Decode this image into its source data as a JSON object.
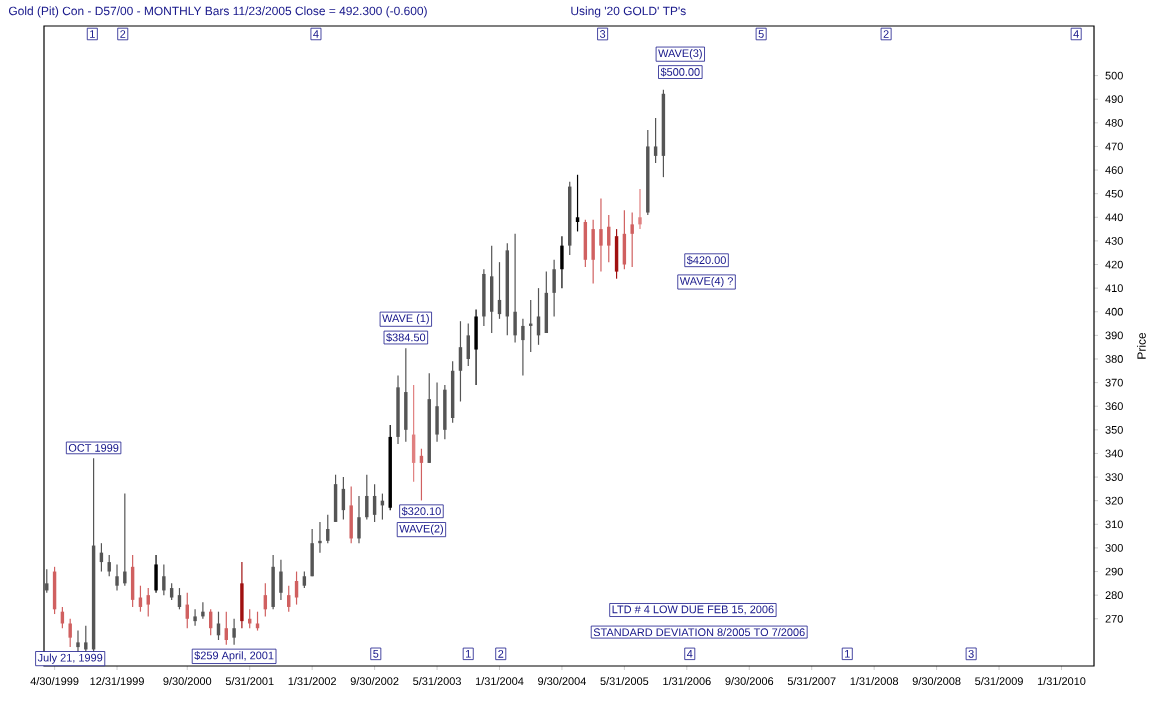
{
  "chart_data": {
    "type": "candlestick",
    "title": "Gold (Pit) Con - D57/00  - MONTHLY Bars  11/23/2005 Close = 492.300 (-0.600)",
    "subtitle": "Using '20 GOLD' TP's",
    "ylabel": "Price",
    "x": [
      "1999-04",
      "1999-05",
      "1999-06",
      "1999-07",
      "1999-08",
      "1999-09",
      "1999-10",
      "1999-11",
      "1999-12",
      "2000-01",
      "2000-02",
      "2000-03",
      "2000-04",
      "2000-05",
      "2000-06",
      "2000-07",
      "2000-08",
      "2000-09",
      "2000-10",
      "2000-11",
      "2000-12",
      "2001-01",
      "2001-02",
      "2001-03",
      "2001-04",
      "2001-05",
      "2001-06",
      "2001-07",
      "2001-08",
      "2001-09",
      "2001-10",
      "2001-11",
      "2001-12",
      "2002-01",
      "2002-02",
      "2002-03",
      "2002-04",
      "2002-05",
      "2002-06",
      "2002-07",
      "2002-08",
      "2002-09",
      "2002-10",
      "2002-11",
      "2002-12",
      "2003-01",
      "2003-02",
      "2003-03",
      "2003-04",
      "2003-05",
      "2003-06",
      "2003-07",
      "2003-08",
      "2003-09",
      "2003-10",
      "2003-11",
      "2003-12",
      "2004-01",
      "2004-02",
      "2004-03",
      "2004-04",
      "2004-05",
      "2004-06",
      "2004-07",
      "2004-08",
      "2004-09",
      "2004-10",
      "2004-11",
      "2004-12",
      "2005-01",
      "2005-02",
      "2005-03",
      "2005-04",
      "2005-05",
      "2005-06",
      "2005-07",
      "2005-08",
      "2005-09",
      "2005-10",
      "2005-11"
    ],
    "ohlc": [
      [
        282,
        291,
        281,
        285
      ],
      [
        290,
        292,
        272,
        274
      ],
      [
        273,
        275,
        266,
        268
      ],
      [
        268,
        270,
        258,
        262
      ],
      [
        258,
        265,
        256,
        260
      ],
      [
        257,
        267,
        255,
        260
      ],
      [
        257,
        338,
        255,
        301
      ],
      [
        294,
        302,
        290,
        298
      ],
      [
        290,
        297,
        288,
        294
      ],
      [
        284,
        293,
        282,
        288
      ],
      [
        285,
        323,
        284,
        290
      ],
      [
        292,
        297,
        275,
        278
      ],
      [
        279,
        284,
        273,
        275
      ],
      [
        280,
        283,
        271,
        276
      ],
      [
        282,
        297,
        281,
        293
      ],
      [
        282,
        293,
        280,
        288
      ],
      [
        279,
        285,
        278,
        283
      ],
      [
        275,
        283,
        274,
        280
      ],
      [
        276,
        281,
        266,
        270
      ],
      [
        269,
        274,
        267,
        271
      ],
      [
        271,
        277,
        270,
        273
      ],
      [
        273,
        274,
        263,
        266
      ],
      [
        263,
        273,
        261,
        268
      ],
      [
        266,
        273,
        259,
        261
      ],
      [
        262,
        270,
        259,
        266
      ],
      [
        285,
        294,
        266,
        269
      ],
      [
        270,
        274,
        266,
        268
      ],
      [
        268,
        273,
        265,
        266
      ],
      [
        280,
        285,
        271,
        274
      ],
      [
        275,
        297,
        274,
        292
      ],
      [
        281,
        295,
        278,
        290
      ],
      [
        280,
        284,
        273,
        275
      ],
      [
        286,
        290,
        276,
        279
      ],
      [
        284,
        290,
        283,
        288
      ],
      [
        288,
        308,
        288,
        302
      ],
      [
        302,
        311,
        298,
        303
      ],
      [
        303,
        314,
        302,
        308
      ],
      [
        311,
        331,
        311,
        327
      ],
      [
        316,
        330,
        312,
        325
      ],
      [
        318,
        326,
        302,
        304
      ],
      [
        304,
        322,
        302,
        313
      ],
      [
        313,
        331,
        312,
        322
      ],
      [
        314,
        327,
        311,
        322
      ],
      [
        318,
        323,
        312,
        320
      ],
      [
        317,
        352,
        316,
        347
      ],
      [
        347,
        373,
        344,
        368
      ],
      [
        350,
        384.5,
        345,
        366
      ],
      [
        348,
        369,
        328,
        336
      ],
      [
        339,
        342,
        320.1,
        336
      ],
      [
        336,
        374,
        336,
        363
      ],
      [
        348,
        370,
        345,
        360
      ],
      [
        350,
        369,
        346,
        367
      ],
      [
        355,
        379,
        353,
        375
      ],
      [
        375,
        396,
        362,
        385
      ],
      [
        380,
        395,
        377,
        390
      ],
      [
        384,
        401,
        369,
        398
      ],
      [
        398,
        418,
        394,
        416
      ],
      [
        400,
        428,
        391,
        415
      ],
      [
        399,
        421,
        397,
        405
      ],
      [
        398,
        429,
        390,
        426
      ],
      [
        390,
        433,
        387,
        400
      ],
      [
        388,
        397,
        373,
        394
      ],
      [
        394,
        405,
        383,
        395
      ],
      [
        390,
        410,
        386,
        398
      ],
      [
        391,
        417,
        391,
        408
      ],
      [
        408,
        422,
        398,
        418
      ],
      [
        418,
        432,
        410,
        428
      ],
      [
        428,
        455,
        424,
        453
      ],
      [
        438,
        458,
        434,
        440
      ],
      [
        438,
        439,
        419,
        422
      ],
      [
        435,
        439,
        412,
        422
      ],
      [
        435,
        448,
        417,
        428
      ],
      [
        436,
        441,
        421,
        428
      ],
      [
        432,
        435,
        414,
        417
      ],
      [
        433,
        443,
        418,
        420
      ],
      [
        437,
        442,
        419,
        433
      ],
      [
        440,
        452,
        435,
        437
      ],
      [
        442,
        477,
        441,
        470
      ],
      [
        466,
        482,
        463,
        470
      ],
      [
        466,
        494,
        457,
        492.3
      ]
    ],
    "colors": [
      "#555555",
      "#d06060",
      "#d06060",
      "#d06060",
      "#555555",
      "#555555",
      "#555555",
      "#555555",
      "#555555",
      "#555555",
      "#555555",
      "#d06060",
      "#d06060",
      "#d06060",
      "#000000",
      "#555555",
      "#555555",
      "#555555",
      "#d06060",
      "#555555",
      "#555555",
      "#d06060",
      "#555555",
      "#d06060",
      "#555555",
      "#a01010",
      "#d06060",
      "#d06060",
      "#d06060",
      "#555555",
      "#555555",
      "#d06060",
      "#d06060",
      "#555555",
      "#555555",
      "#555555",
      "#555555",
      "#555555",
      "#555555",
      "#d06060",
      "#555555",
      "#555555",
      "#555555",
      "#555555",
      "#000000",
      "#555555",
      "#555555",
      "#e08080",
      "#d06060",
      "#555555",
      "#555555",
      "#555555",
      "#555555",
      "#555555",
      "#555555",
      "#000000",
      "#555555",
      "#555555",
      "#555555",
      "#555555",
      "#555555",
      "#555555",
      "#555555",
      "#555555",
      "#555555",
      "#555555",
      "#000000",
      "#555555",
      "#000000",
      "#d06060",
      "#d06060",
      "#d06060",
      "#d06060",
      "#a01010",
      "#d06060",
      "#d06060",
      "#e08080",
      "#555555",
      "#555555",
      "#555555"
    ],
    "xlim": [
      "1999-03-20",
      "2010-06-05"
    ],
    "ylim": [
      250,
      521
    ],
    "xticks": [
      {
        "value": "1999-04-30",
        "label": "4/30/1999"
      },
      {
        "value": "1999-12-31",
        "label": "12/31/1999"
      },
      {
        "value": "2000-09-30",
        "label": "9/30/2000"
      },
      {
        "value": "2001-05-31",
        "label": "5/31/2001"
      },
      {
        "value": "2002-01-31",
        "label": "1/31/2002"
      },
      {
        "value": "2002-09-30",
        "label": "9/30/2002"
      },
      {
        "value": "2003-05-31",
        "label": "5/31/2003"
      },
      {
        "value": "2004-01-31",
        "label": "1/31/2004"
      },
      {
        "value": "2004-09-30",
        "label": "9/30/2004"
      },
      {
        "value": "2005-05-31",
        "label": "5/31/2005"
      },
      {
        "value": "2006-01-31",
        "label": "1/31/2006"
      },
      {
        "value": "2006-09-30",
        "label": "9/30/2006"
      },
      {
        "value": "2007-05-31",
        "label": "5/31/2007"
      },
      {
        "value": "2008-01-31",
        "label": "1/31/2008"
      },
      {
        "value": "2008-09-30",
        "label": "9/30/2008"
      },
      {
        "value": "2009-05-31",
        "label": "5/31/2009"
      },
      {
        "value": "2010-01-31",
        "label": "1/31/2010"
      }
    ],
    "yticks": [
      270,
      280,
      290,
      300,
      310,
      320,
      330,
      340,
      350,
      360,
      370,
      380,
      390,
      400,
      410,
      420,
      430,
      440,
      450,
      460,
      470,
      480,
      490,
      500
    ],
    "annotations": [
      {
        "text": "OCT 1999",
        "x": "1999-10",
        "y": 338
      },
      {
        "text": "July 21, 1999",
        "x": "1999-07",
        "y": 258
      },
      {
        "text": "$259 April, 2001",
        "x": "2001-04",
        "y": 259
      },
      {
        "text": "$384.50",
        "x": "2003-02",
        "y": 384.5
      },
      "WAVE (1)",
      {
        "text": "$320.10",
        "x": "2003-04",
        "y": 320.1
      },
      "WAVE(2)",
      "WAVE(3)",
      "$500.00",
      "$420.00",
      "WAVE(4) ?",
      "LTD # 4 LOW DUE FEB 15, 2006",
      "STANDARD DEVIATION 8/2005 TO 7/2006",
      "1",
      "2",
      "4",
      "3",
      "5",
      "2",
      "4",
      "5",
      "1",
      "2",
      "4",
      "1",
      "3"
    ]
  }
}
